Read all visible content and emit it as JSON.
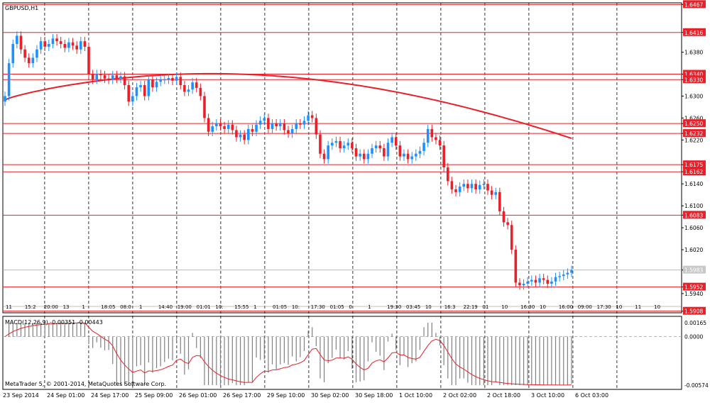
{
  "title": "GBPUSD,H1",
  "copyright": "MetaTrader 5, © 2001-2014, MetaQuotes Software Corp.",
  "colors": {
    "bull": "#1e90ff",
    "bear": "#e8202a",
    "level": "#e8202a",
    "ma": "#e8202a",
    "macd_signal": "#e8202a",
    "macd_hist": "#808080",
    "grid": "#000000"
  },
  "chart_data": {
    "type": "candlestick",
    "symbol": "GBPUSD",
    "timeframe": "H1",
    "price_ticks": [
      "1.6467",
      "1.6416",
      "1.6380",
      "1.6340",
      "1.6330",
      "1.6300",
      "1.6260",
      "1.6250",
      "1.6232",
      "1.6220",
      "1.6175",
      "1.6162",
      "1.6140",
      "1.6100",
      "1.6083",
      "1.6060",
      "1.6020",
      "1.5983",
      "1.5952",
      "1.5940",
      "1.5908"
    ],
    "price_ylim": [
      1.5905,
      1.647
    ],
    "horizontal_levels": [
      1.6467,
      1.6416,
      1.634,
      1.633,
      1.625,
      1.6232,
      1.6175,
      1.6162,
      1.6083,
      1.5952,
      1.5908
    ],
    "current_price": 1.5983,
    "time_labels": [
      "23 Sep 2014",
      "24 Sep 01:00",
      "24 Sep 17:00",
      "25 Sep 09:00",
      "26 Sep 01:00",
      "26 Sep 17:00",
      "29 Sep 10:00",
      "30 Sep 02:00",
      "30 Sep 18:00",
      "1 Oct 10:00",
      "2 Oct 02:00",
      "2 Oct 18:00",
      "3 Oct 10:00",
      "6 Oct 03:00"
    ],
    "session_tags": [
      "11",
      "15:2",
      "20:00",
      "13",
      "1",
      "18:05",
      "08:0",
      "1",
      "14:40",
      "19:00",
      "01:01",
      "10:",
      "15:55",
      "1",
      "01:05",
      "10:",
      "17:30",
      "01:05",
      "0",
      "1",
      "19:30",
      "03:45",
      "10",
      "16:3",
      "22:19",
      "01",
      "10",
      "16:30",
      "10",
      "16:00",
      "09:00",
      "17:30",
      "10",
      "11",
      "10"
    ],
    "candles_close": [
      1.63,
      1.636,
      1.6395,
      1.641,
      1.6385,
      1.637,
      1.636,
      1.637,
      1.6385,
      1.64,
      1.639,
      1.6395,
      1.6405,
      1.64,
      1.6395,
      1.6388,
      1.6398,
      1.6392,
      1.6385,
      1.64,
      1.639,
      1.634,
      1.633,
      1.634,
      1.6338,
      1.6332,
      1.633,
      1.6338,
      1.6332,
      1.6336,
      1.632,
      1.629,
      1.63,
      1.6316,
      1.632,
      1.63,
      1.633,
      1.6316,
      1.6326,
      1.633,
      1.633,
      1.6333,
      1.6328,
      1.6335,
      1.632,
      1.6308,
      1.6312,
      1.6325,
      1.6315,
      1.63,
      1.626,
      1.6235,
      1.6245,
      1.625,
      1.6245,
      1.624,
      1.6248,
      1.6238,
      1.6225,
      1.623,
      1.622,
      1.624,
      1.6235,
      1.6248,
      1.6255,
      1.626,
      1.624,
      1.625,
      1.6245,
      1.625,
      1.6238,
      1.6232,
      1.624,
      1.625,
      1.6248,
      1.6255,
      1.6265,
      1.626,
      1.623,
      1.6195,
      1.6185,
      1.621,
      1.6215,
      1.6218,
      1.6205,
      1.621,
      1.6215,
      1.6205,
      1.619,
      1.6195,
      1.6185,
      1.6195,
      1.6205,
      1.621,
      1.6205,
      1.619,
      1.6215,
      1.6225,
      1.621,
      1.619,
      1.6195,
      1.6185,
      1.619,
      1.6195,
      1.62,
      1.6215,
      1.624,
      1.6225,
      1.622,
      1.621,
      1.617,
      1.6145,
      1.613,
      1.6125,
      1.6135,
      1.614,
      1.6132,
      1.614,
      1.613,
      1.6138,
      1.614,
      1.6128,
      1.612,
      1.6125,
      1.609,
      1.607,
      1.6065,
      1.602,
      1.596,
      1.5955,
      1.5958,
      1.5962,
      1.5965,
      1.596,
      1.5968,
      1.5965,
      1.5958,
      1.5962,
      1.597,
      1.5972,
      1.5975,
      1.5978,
      1.5983
    ],
    "ma_ylim": [
      1.6225,
      1.635
    ],
    "macd": {
      "label": "MACD(12,26,9) -0.00351 -0.00443",
      "ticks": [
        "0.00165",
        "0.0000",
        "-0.00574"
      ],
      "ylim": [
        -0.00574,
        0.00165
      ]
    }
  }
}
